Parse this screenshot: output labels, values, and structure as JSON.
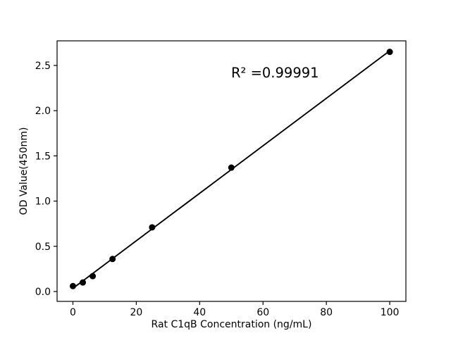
{
  "figure": {
    "background": "#ffffff",
    "foreground": "#000000"
  },
  "chart_data": {
    "type": "scatter",
    "title": "",
    "xlabel": "Rat C1qB Concentration (ng/mL)",
    "ylabel": "OD Value(450nm)",
    "annotation": "R² =0.99991",
    "series": [
      {
        "name": "standard-curve",
        "x": [
          0,
          3.125,
          6.25,
          12.5,
          25,
          50,
          100
        ],
        "y": [
          0.06,
          0.1,
          0.17,
          0.36,
          0.71,
          1.37,
          2.65
        ],
        "marker": "circle",
        "color": "#000000"
      }
    ],
    "fit_line": {
      "type": "linear-regression",
      "x_start": 0,
      "x_end": 100,
      "r_squared": 0.99991,
      "color": "#000000"
    },
    "xlim": [
      -5,
      105.1
    ],
    "ylim": [
      -0.109,
      2.772
    ],
    "x_ticks": [
      0,
      20,
      40,
      60,
      80,
      100
    ],
    "x_tick_labels": [
      "0",
      "20",
      "40",
      "60",
      "80",
      "100"
    ],
    "y_ticks": [
      0.0,
      0.5,
      1.0,
      1.5,
      2.0,
      2.5
    ],
    "y_tick_labels": [
      "0.0",
      "0.5",
      "1.0",
      "1.5",
      "2.0",
      "2.5"
    ],
    "grid": false,
    "legend": "none"
  }
}
